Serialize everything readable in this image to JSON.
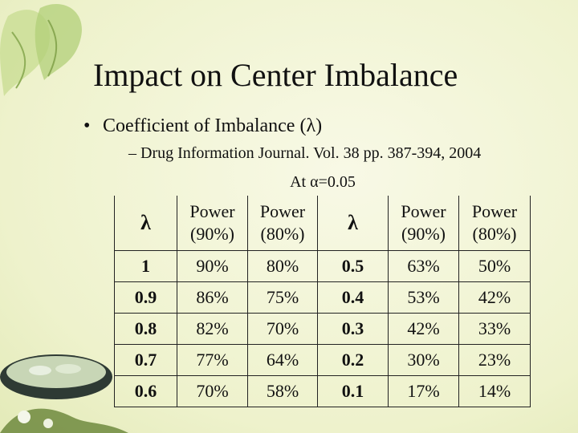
{
  "slide": {
    "title": "Impact on Center Imbalance",
    "bullet_main": "Coefficient of Imbalance (λ)",
    "bullet_sub": "– Drug Information Journal. Vol. 38 pp. 387-394, 2004",
    "alpha_note": "At α=0.05"
  },
  "table": {
    "headers": [
      "λ",
      "Power (90%)",
      "Power (80%)",
      "λ",
      "Power (90%)",
      "Power (80%)"
    ],
    "header_lines": [
      [
        "λ"
      ],
      [
        "Power",
        "(90%)"
      ],
      [
        "Power",
        "(80%)"
      ],
      [
        "λ"
      ],
      [
        "Power",
        "(90%)"
      ],
      [
        "Power",
        "(80%)"
      ]
    ],
    "rows": [
      [
        "1",
        "90%",
        "80%",
        "0.5",
        "63%",
        "50%"
      ],
      [
        "0.9",
        "86%",
        "75%",
        "0.4",
        "53%",
        "42%"
      ],
      [
        "0.8",
        "82%",
        "70%",
        "0.3",
        "42%",
        "33%"
      ],
      [
        "0.7",
        "77%",
        "64%",
        "0.2",
        "30%",
        "23%"
      ],
      [
        "0.6",
        "70%",
        "58%",
        "0.1",
        "17%",
        "14%"
      ]
    ]
  },
  "decor": {
    "background": "#f3f5d8",
    "leaf_color": "#a9c96a",
    "bowl_color": "#2e3a34",
    "icons": [
      "leaf-icon",
      "bowl-icon"
    ]
  }
}
